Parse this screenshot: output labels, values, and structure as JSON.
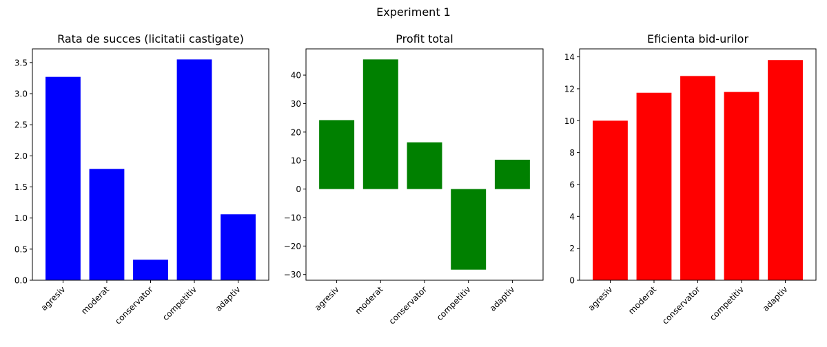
{
  "figure": {
    "title": "Experiment 1"
  },
  "chart_data": [
    {
      "type": "bar",
      "title": "Rata de succes (licitatii castigate)",
      "categories": [
        "agresiv",
        "moderat",
        "conservator",
        "competitiv",
        "adaptiv"
      ],
      "values": [
        3.27,
        1.79,
        0.33,
        3.55,
        1.06
      ],
      "ylim": [
        0,
        3.72
      ],
      "yticks": [
        0,
        0.5,
        1,
        1.5,
        2,
        2.5,
        3,
        3.5
      ],
      "ytick_labels": [
        "0.0",
        "0.5",
        "1.0",
        "1.5",
        "2.0",
        "2.5",
        "3.0",
        "3.5"
      ],
      "color": "#0000ff",
      "grid": false
    },
    {
      "type": "bar",
      "title": "Profit total",
      "categories": [
        "agresiv",
        "moderat",
        "conservator",
        "competitiv",
        "adaptiv"
      ],
      "values": [
        24.2,
        45.5,
        16.4,
        -28.3,
        10.3
      ],
      "ylim": [
        -32.0,
        49.2
      ],
      "yticks": [
        -30,
        -20,
        -10,
        0,
        10,
        20,
        30,
        40
      ],
      "ytick_labels": [
        "−30",
        "−20",
        "−10",
        "0",
        "10",
        "20",
        "30",
        "40"
      ],
      "color": "#008000",
      "grid": false
    },
    {
      "type": "bar",
      "title": "Eficienta bid-urilor",
      "categories": [
        "agresiv",
        "moderat",
        "conservator",
        "competitiv",
        "adaptiv"
      ],
      "values": [
        10.0,
        11.75,
        12.8,
        11.8,
        13.8
      ],
      "ylim": [
        0,
        14.5
      ],
      "yticks": [
        0,
        2,
        4,
        6,
        8,
        10,
        12,
        14
      ],
      "ytick_labels": [
        "0",
        "2",
        "4",
        "6",
        "8",
        "10",
        "12",
        "14"
      ],
      "color": "#ff0000",
      "grid": false
    }
  ]
}
